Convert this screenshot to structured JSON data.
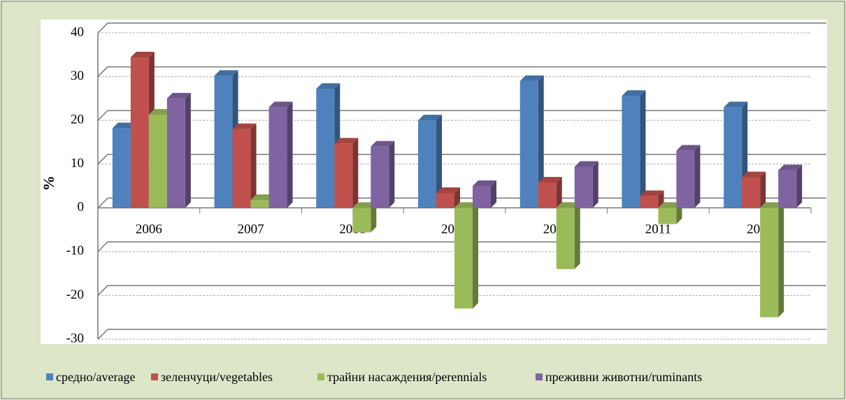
{
  "chart_data": {
    "type": "bar3d",
    "y_label": "%",
    "categories": [
      "2006",
      "2007",
      "2008",
      "2009",
      "2010",
      "2011",
      "2012"
    ],
    "series": [
      {
        "name": "средно/average",
        "color": "#4f81bd",
        "values": [
          18.2,
          30.2,
          27.2,
          20,
          29,
          25.6,
          23
        ]
      },
      {
        "name": "зеленчуци/vegetables",
        "color": "#c0504d",
        "values": [
          34.4,
          18,
          14.7,
          3.4,
          5.8,
          2.7,
          7
        ]
      },
      {
        "name": "трайни насаждения/perennials",
        "color": "#9bbb59",
        "values": [
          21.3,
          1.8,
          -5.6,
          -23,
          -14,
          -3.7,
          -25
        ]
      },
      {
        "name": "преживни животни/ruminants",
        "color": "#8064a2",
        "values": [
          25,
          23,
          14,
          5,
          9.4,
          13.1,
          8.6
        ]
      }
    ],
    "ylim": [
      -30,
      40
    ],
    "yticks": [
      -30,
      -20,
      -10,
      0,
      10,
      20,
      30,
      40
    ],
    "grid": true
  }
}
